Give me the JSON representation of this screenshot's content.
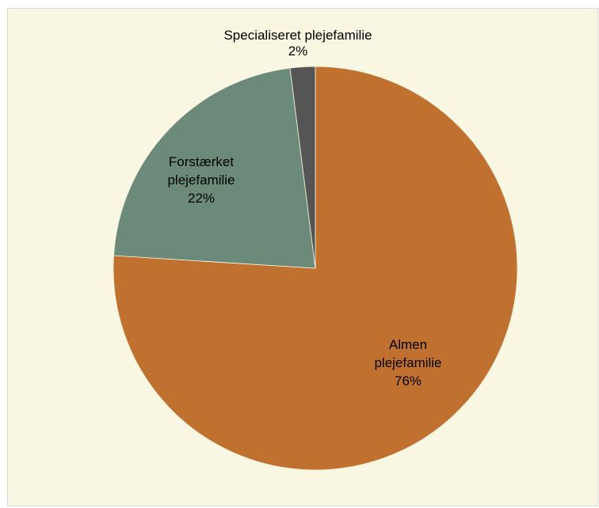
{
  "chart_data": {
    "type": "pie",
    "title": "",
    "categories": [
      "Almen plejefamilie",
      "Forstærket plejefamilie",
      "Specialiseret plejefamilie"
    ],
    "values": [
      76,
      22,
      2
    ],
    "colors": [
      "#c0702f",
      "#6b8a7a",
      "#555555"
    ],
    "slices": [
      {
        "label_lines": [
          "Almen",
          "plejefamilie"
        ],
        "pct_label": "76%"
      },
      {
        "label_lines": [
          "Forstærket",
          "plejefamilie"
        ],
        "pct_label": "22%"
      },
      {
        "label_lines": [
          "Specialiseret plejefamilie"
        ],
        "pct_label": "2%"
      }
    ],
    "start": "12 o'clock",
    "direction": "clockwise",
    "legend": "none"
  }
}
